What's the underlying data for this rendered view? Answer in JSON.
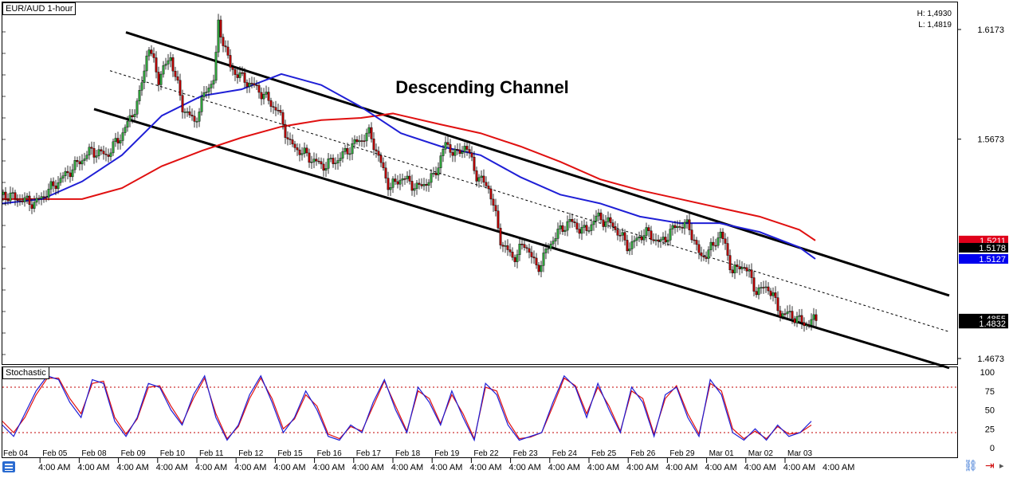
{
  "instrument_label": "EUR/AUD 1-hour",
  "high_low": {
    "high": "H: 1,4930",
    "low": "L: 1,4819"
  },
  "annotation": "Descending Channel",
  "price_tags": [
    {
      "value": 1.5211,
      "label": "1.5211",
      "bg": "#e0001b",
      "fg": "#ffffff"
    },
    {
      "value": 1.5178,
      "label": "1.5178",
      "bg": "#000000",
      "fg": "#ffffff"
    },
    {
      "value": 1.5127,
      "label": "1.5127",
      "bg": "#0000ee",
      "fg": "#ffffff"
    },
    {
      "value": 1.4855,
      "label": "1.4855",
      "bg": "#000000",
      "fg": "#ffffff"
    },
    {
      "value": 1.4832,
      "label": "1.4832",
      "bg": "#000000",
      "fg": "#ffffff"
    }
  ],
  "colors": {
    "candle_up": "#2e9e3a",
    "candle_down": "#b00000",
    "ma_fast": "#1f1fd6",
    "ma_slow": "#e01010",
    "channel": "#000000",
    "stoch_k": "#1f1fd6",
    "stoch_d": "#e01010",
    "stoch_levels": "#c00000"
  },
  "chart_data": [
    {
      "type": "line",
      "title": "EUR/AUD 1-hour",
      "ylim": [
        1.4673,
        1.6173
      ],
      "y_ticks": [
        "1.6173",
        "1.5673",
        "1.4673"
      ],
      "x_dates": [
        "Feb 04",
        "Feb 05",
        "Feb 08",
        "Feb 09",
        "Feb 10",
        "Feb 11",
        "Feb 12",
        "Feb 15",
        "Feb 16",
        "Feb 17",
        "Feb 18",
        "Feb 19",
        "Feb 22",
        "Feb 23",
        "Feb 24",
        "Feb 25",
        "Feb 26",
        "Feb 29",
        "Mar 01",
        "Mar 02",
        "Mar 03"
      ],
      "x_time_label": "4:00 AM",
      "price_path": [
        [
          0,
          1.542
        ],
        [
          40,
          1.538
        ],
        [
          60,
          1.545
        ],
        [
          90,
          1.555
        ],
        [
          110,
          1.562
        ],
        [
          130,
          1.56
        ],
        [
          150,
          1.57
        ],
        [
          170,
          1.585
        ],
        [
          182,
          1.61
        ],
        [
          195,
          1.595
        ],
        [
          210,
          1.605
        ],
        [
          225,
          1.582
        ],
        [
          240,
          1.575
        ],
        [
          255,
          1.59
        ],
        [
          265,
          1.595
        ],
        [
          270,
          1.62
        ],
        [
          285,
          1.6
        ],
        [
          300,
          1.595
        ],
        [
          320,
          1.59
        ],
        [
          345,
          1.58
        ],
        [
          360,
          1.565
        ],
        [
          380,
          1.56
        ],
        [
          400,
          1.555
        ],
        [
          420,
          1.558
        ],
        [
          440,
          1.565
        ],
        [
          460,
          1.57
        ],
        [
          470,
          1.56
        ],
        [
          485,
          1.545
        ],
        [
          500,
          1.55
        ],
        [
          520,
          1.545
        ],
        [
          540,
          1.55
        ],
        [
          555,
          1.565
        ],
        [
          570,
          1.56
        ],
        [
          580,
          1.565
        ],
        [
          595,
          1.55
        ],
        [
          610,
          1.545
        ],
        [
          625,
          1.52
        ],
        [
          640,
          1.513
        ],
        [
          655,
          1.52
        ],
        [
          670,
          1.508
        ],
        [
          690,
          1.522
        ],
        [
          710,
          1.53
        ],
        [
          730,
          1.525
        ],
        [
          745,
          1.532
        ],
        [
          765,
          1.528
        ],
        [
          785,
          1.518
        ],
        [
          805,
          1.525
        ],
        [
          825,
          1.52
        ],
        [
          845,
          1.528
        ],
        [
          860,
          1.528
        ],
        [
          875,
          1.513
        ],
        [
          890,
          1.518
        ],
        [
          900,
          1.525
        ],
        [
          915,
          1.507
        ],
        [
          930,
          1.51
        ],
        [
          945,
          1.498
        ],
        [
          960,
          1.5
        ],
        [
          975,
          1.488
        ],
        [
          990,
          1.487
        ],
        [
          1005,
          1.483
        ],
        [
          1020,
          1.485
        ]
      ],
      "ma_fast_path": [
        [
          0,
          1.538
        ],
        [
          50,
          1.54
        ],
        [
          100,
          1.548
        ],
        [
          150,
          1.56
        ],
        [
          200,
          1.578
        ],
        [
          250,
          1.587
        ],
        [
          300,
          1.59
        ],
        [
          350,
          1.597
        ],
        [
          400,
          1.592
        ],
        [
          450,
          1.582
        ],
        [
          500,
          1.57
        ],
        [
          550,
          1.564
        ],
        [
          600,
          1.56
        ],
        [
          650,
          1.55
        ],
        [
          700,
          1.542
        ],
        [
          750,
          1.538
        ],
        [
          800,
          1.532
        ],
        [
          850,
          1.529
        ],
        [
          900,
          1.529
        ],
        [
          950,
          1.525
        ],
        [
          1000,
          1.518
        ],
        [
          1020,
          1.5127
        ]
      ],
      "ma_slow_path": [
        [
          0,
          1.54
        ],
        [
          100,
          1.54
        ],
        [
          150,
          1.545
        ],
        [
          200,
          1.555
        ],
        [
          250,
          1.562
        ],
        [
          300,
          1.568
        ],
        [
          350,
          1.573
        ],
        [
          400,
          1.576
        ],
        [
          450,
          1.577
        ],
        [
          490,
          1.579
        ],
        [
          550,
          1.574
        ],
        [
          600,
          1.57
        ],
        [
          650,
          1.564
        ],
        [
          700,
          1.557
        ],
        [
          750,
          1.549
        ],
        [
          800,
          1.544
        ],
        [
          850,
          1.54
        ],
        [
          900,
          1.536
        ],
        [
          950,
          1.532
        ],
        [
          1000,
          1.526
        ],
        [
          1020,
          1.5211
        ]
      ],
      "channel_upper": [
        [
          155,
          1.616
        ],
        [
          1188,
          1.496
        ]
      ],
      "channel_lower": [
        [
          115,
          1.581
        ],
        [
          1188,
          1.463
        ]
      ],
      "channel_mid": [
        [
          135,
          1.5985
        ],
        [
          1188,
          1.4795
        ]
      ]
    },
    {
      "type": "line",
      "title": "Stochastic",
      "ylim": [
        0,
        100
      ],
      "y_ticks": [
        "100",
        "75",
        "50",
        "25",
        "0"
      ],
      "levels": [
        80,
        20
      ],
      "series": [
        {
          "values": [
            30,
            15,
            45,
            75,
            95,
            90,
            60,
            40,
            90,
            85,
            35,
            15,
            40,
            85,
            80,
            50,
            30,
            70,
            95,
            40,
            10,
            30,
            70,
            95,
            60,
            20,
            40,
            75,
            50,
            15,
            10,
            30,
            20,
            60,
            90,
            50,
            20,
            80,
            60,
            30,
            75,
            40,
            10,
            85,
            70,
            30,
            10,
            15,
            20,
            60,
            95,
            80,
            40,
            85,
            50,
            20,
            80,
            60,
            15,
            70,
            80,
            40,
            15,
            90,
            70,
            20,
            10,
            25,
            10,
            30,
            15,
            20,
            35
          ]
        },
        {
          "values": [
            35,
            20,
            40,
            70,
            92,
            92,
            65,
            45,
            85,
            88,
            40,
            18,
            38,
            80,
            82,
            55,
            32,
            65,
            92,
            45,
            12,
            28,
            65,
            92,
            65,
            25,
            38,
            70,
            55,
            18,
            12,
            28,
            22,
            55,
            88,
            55,
            22,
            75,
            65,
            32,
            70,
            45,
            12,
            80,
            75,
            35,
            12,
            14,
            20,
            55,
            92,
            82,
            45,
            80,
            55,
            22,
            75,
            65,
            18,
            65,
            82,
            45,
            18,
            85,
            75,
            25,
            12,
            22,
            12,
            28,
            18,
            20,
            30
          ]
        }
      ]
    }
  ]
}
